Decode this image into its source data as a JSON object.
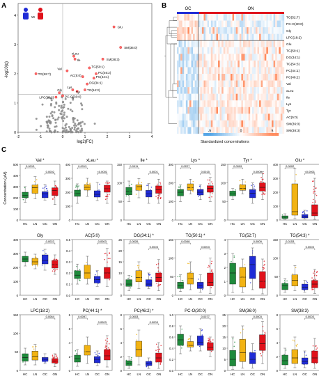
{
  "panels": {
    "A": "A",
    "B": "B",
    "C": "C"
  },
  "volcano": {
    "ylabel": "-log10(q)",
    "xlabel": "log2(FC)",
    "vs": "vs",
    "x_ticks": [
      "-2",
      "-1",
      "0",
      "1",
      "2",
      "3",
      "4"
    ],
    "y_ticks": [
      "0",
      "1",
      "2",
      "3",
      "4"
    ],
    "labels": [
      "Glu",
      "SM(36:0)",
      "xLeu",
      "Ile",
      "SM(38:3)",
      "TG(50:1)",
      "Val",
      "PC(46:2)",
      "AC(5:0)",
      "PC(44:1)",
      "TG(52:7)",
      "DG(34:1)",
      "Lys",
      "Tyr",
      "TG(54:3)",
      "Gly",
      "LPC(18:2)",
      "PC-O(30:0)"
    ]
  },
  "heatmap": {
    "groups": [
      "OC",
      "ON"
    ],
    "rows": [
      "TG(52:7)",
      "PC-O(30:0)",
      "Gly",
      "LPC(18:2)",
      "Glu",
      "TG(50:1)",
      "DG(34:1)",
      "TG(54:3)",
      "PC(44:1)",
      "PC(46:2)",
      "Val",
      "xLeu",
      "Ile",
      "Lys",
      "Tyr",
      "AC(5:0)",
      "SM(36:0)",
      "SM(38:3)"
    ],
    "colorbar_label": "Standardized concentrations",
    "colorbar_ticks": [
      "-5",
      "0",
      "5"
    ]
  },
  "boxes": {
    "ylabel": "Concentration (µM)",
    "groups": [
      "HC",
      "LN",
      "OC",
      "ON"
    ],
    "colors": {
      "HC": "#1f8a3c",
      "LN": "#f2b313",
      "OC": "#1f2bd6",
      "ON": "#e0121b"
    }
  },
  "chart_data": [
    {
      "type": "box",
      "title": "Val",
      "star": "*",
      "ylim": [
        0,
        500
      ],
      "yticks": [
        "0",
        "100",
        "200",
        "300",
        "400",
        "500"
      ],
      "medians": [
        220,
        290,
        235,
        265
      ],
      "q1": [
        200,
        240,
        200,
        220
      ],
      "q3": [
        250,
        315,
        255,
        290
      ],
      "wlo": [
        160,
        190,
        180,
        140
      ],
      "whi": [
        300,
        390,
        320,
        350
      ],
      "pvals": [
        {
          "g1": 0,
          "g2": 1,
          "p": "0.0013"
        },
        {
          "g1": 2,
          "g2": 3,
          "p": "0.0002"
        }
      ]
    },
    {
      "type": "box",
      "title": "xLeu",
      "star": "*",
      "ylim": [
        0,
        400
      ],
      "yticks": [
        "0",
        "100",
        "200",
        "300",
        "400"
      ],
      "medians": [
        190,
        235,
        185,
        225
      ],
      "q1": [
        170,
        215,
        165,
        200
      ],
      "q3": [
        215,
        255,
        210,
        250
      ],
      "wlo": [
        120,
        170,
        140,
        120
      ],
      "whi": [
        260,
        300,
        270,
        280
      ],
      "pvals": [
        {
          "g1": 0,
          "g2": 1,
          "p": "0.0013"
        },
        {
          "g1": 2,
          "g2": 3,
          "p": "<0.0001"
        }
      ]
    },
    {
      "type": "box",
      "title": "Ile",
      "star": "*",
      "ylim": [
        0,
        150
      ],
      "yticks": [
        "0",
        "50",
        "100",
        "150"
      ],
      "medians": [
        78,
        90,
        70,
        82
      ],
      "q1": [
        68,
        80,
        62,
        72
      ],
      "q3": [
        88,
        95,
        80,
        92
      ],
      "wlo": [
        50,
        60,
        45,
        45
      ],
      "whi": [
        105,
        112,
        98,
        110
      ],
      "pvals": [
        {
          "g1": 0,
          "g2": 1,
          "p": "0.0011"
        },
        {
          "g1": 2,
          "g2": 3,
          "p": "0.0001"
        }
      ]
    },
    {
      "type": "box",
      "title": "Lys",
      "star": "*",
      "ylim": [
        0,
        300
      ],
      "yticks": [
        "0",
        "100",
        "200",
        "300"
      ],
      "medians": [
        150,
        175,
        150,
        170
      ],
      "q1": [
        130,
        160,
        135,
        150
      ],
      "q3": [
        165,
        195,
        165,
        185
      ],
      "wlo": [
        100,
        140,
        110,
        100
      ],
      "whi": [
        190,
        220,
        190,
        230
      ],
      "pvals": [
        {
          "g1": 0,
          "g2": 1,
          "p": "0.0227"
        },
        {
          "g1": 2,
          "g2": 3,
          "p": "0.0015"
        }
      ]
    },
    {
      "type": "box",
      "title": "Tyr",
      "star": "*",
      "ylim": [
        0,
        150
      ],
      "yticks": [
        "0",
        "50",
        "100",
        "150"
      ],
      "medians": [
        70,
        85,
        72,
        88
      ],
      "q1": [
        65,
        80,
        60,
        78
      ],
      "q3": [
        78,
        95,
        82,
        100
      ],
      "wlo": [
        55,
        70,
        45,
        55
      ],
      "whi": [
        85,
        110,
        100,
        130
      ],
      "pvals": [
        {
          "g1": 0,
          "g2": 1,
          "p": "0.0099"
        },
        {
          "g1": 2,
          "g2": 3,
          "p": "0.0006"
        }
      ]
    },
    {
      "type": "box",
      "title": "Glu",
      "star": "*",
      "ylim": [
        0,
        400
      ],
      "yticks": [
        "0",
        "100",
        "200",
        "300",
        "400"
      ],
      "medians": [
        20,
        60,
        25,
        50
      ],
      "q1": [
        12,
        35,
        15,
        30
      ],
      "q3": [
        30,
        260,
        40,
        110
      ],
      "wlo": [
        5,
        10,
        8,
        5
      ],
      "whi": [
        45,
        370,
        70,
        300
      ],
      "pvals": [
        {
          "g1": 0,
          "g2": 1,
          "p": "0.0002"
        },
        {
          "g1": 2,
          "g2": 3,
          "p": "<0.0001"
        }
      ]
    },
    {
      "type": "box",
      "title": "Gly",
      "star": "",
      "ylim": [
        0,
        400
      ],
      "yticks": [
        "0",
        "100",
        "200",
        "300",
        "400"
      ],
      "medians": [
        260,
        240,
        250,
        220
      ],
      "q1": [
        240,
        220,
        225,
        195
      ],
      "q3": [
        280,
        265,
        290,
        250
      ],
      "wlo": [
        210,
        190,
        180,
        150
      ],
      "whi": [
        310,
        295,
        330,
        290
      ],
      "pvals": [
        {
          "g1": 2,
          "g2": 3,
          "p": "0.0022"
        }
      ]
    },
    {
      "type": "box",
      "title": "AC(5:0)",
      "star": "",
      "ylim": [
        0,
        0.5
      ],
      "yticks": [
        "0.0",
        "0.1",
        "0.2",
        "0.3",
        "0.4",
        "0.5"
      ],
      "medians": [
        0.18,
        0.2,
        0.14,
        0.2
      ],
      "q1": [
        0.15,
        0.15,
        0.11,
        0.15
      ],
      "q3": [
        0.22,
        0.27,
        0.17,
        0.25
      ],
      "wlo": [
        0.1,
        0.1,
        0.08,
        0.08
      ],
      "whi": [
        0.28,
        0.35,
        0.22,
        0.42
      ],
      "pvals": [
        {
          "g1": 2,
          "g2": 3,
          "p": "0.0003"
        }
      ]
    },
    {
      "type": "box",
      "title": "DG(34:1)",
      "star": "*",
      "ylim": [
        0,
        25
      ],
      "yticks": [
        "0",
        "5",
        "10",
        "15",
        "20",
        "25"
      ],
      "medians": [
        5,
        8,
        5,
        8
      ],
      "q1": [
        4,
        6,
        4,
        6
      ],
      "q3": [
        7,
        11,
        7,
        10
      ],
      "wlo": [
        2,
        3,
        3,
        2
      ],
      "whi": [
        9,
        15,
        10,
        16
      ],
      "pvals": [
        {
          "g1": 0,
          "g2": 1,
          "p": "0.0026"
        },
        {
          "g1": 2,
          "g2": 3,
          "p": "0.0003"
        }
      ]
    },
    {
      "type": "box",
      "title": "TG(50:1)",
      "star": "*",
      "ylim": [
        0,
        150
      ],
      "yticks": [
        "0",
        "50",
        "100",
        "150"
      ],
      "medians": [
        25,
        45,
        25,
        35
      ],
      "q1": [
        18,
        30,
        18,
        25
      ],
      "q3": [
        35,
        60,
        35,
        60
      ],
      "wlo": [
        10,
        15,
        8,
        5
      ],
      "whi": [
        55,
        90,
        55,
        100
      ],
      "pvals": [
        {
          "g1": 0,
          "g2": 1,
          "p": "0.0048"
        },
        {
          "g1": 2,
          "g2": 3,
          "p": "0.0003"
        }
      ]
    },
    {
      "type": "box",
      "title": "TG(52:7)",
      "star": "",
      "ylim": [
        0,
        4
      ],
      "yticks": [
        "0",
        "1",
        "2",
        "3",
        "4"
      ],
      "medians": [
        1.6,
        1.3,
        2.2,
        1.0
      ],
      "q1": [
        0.8,
        0.6,
        1.2,
        0.5
      ],
      "q3": [
        2.3,
        2.0,
        2.8,
        1.7
      ],
      "wlo": [
        0.2,
        0.2,
        0.4,
        0.1
      ],
      "whi": [
        3.0,
        2.6,
        3.4,
        2.6
      ],
      "pvals": [
        {
          "g1": 2,
          "g2": 3,
          "p": "0.0009"
        }
      ]
    },
    {
      "type": "box",
      "title": "TG(54:3)",
      "star": "*",
      "ylim": [
        0,
        150
      ],
      "yticks": [
        "0",
        "50",
        "100",
        "150"
      ],
      "medians": [
        25,
        40,
        22,
        30
      ],
      "q1": [
        15,
        25,
        15,
        20
      ],
      "q3": [
        32,
        55,
        30,
        40
      ],
      "wlo": [
        8,
        12,
        8,
        5
      ],
      "whi": [
        45,
        80,
        40,
        70
      ],
      "pvals": [
        {
          "g1": 0,
          "g2": 1,
          "p": "0.0153"
        },
        {
          "g1": 2,
          "g2": 3,
          "p": "0.0003"
        }
      ]
    },
    {
      "type": "box",
      "title": "LPC(18:2)",
      "star": "",
      "ylim": [
        0,
        150
      ],
      "yticks": [
        "0",
        "50",
        "100",
        "150"
      ],
      "medians": [
        35,
        38,
        30,
        25
      ],
      "q1": [
        25,
        28,
        25,
        20
      ],
      "q3": [
        45,
        52,
        35,
        32
      ],
      "wlo": [
        15,
        15,
        18,
        10
      ],
      "whi": [
        60,
        70,
        45,
        45
      ],
      "pvals": [
        {
          "g1": 2,
          "g2": 3,
          "p": "0.0064"
        }
      ]
    },
    {
      "type": "box",
      "title": "PC(44:1)",
      "star": "*",
      "ylim": [
        0,
        8
      ],
      "yticks": [
        "0",
        "2",
        "4",
        "6",
        "8"
      ],
      "medians": [
        1.7,
        2.7,
        1.6,
        2.1
      ],
      "q1": [
        1.2,
        2.2,
        1.1,
        1.5
      ],
      "q3": [
        2.2,
        3.6,
        2.0,
        3.0
      ],
      "wlo": [
        0.6,
        1.0,
        0.7,
        0.5
      ],
      "whi": [
        3.0,
        4.8,
        2.8,
        5.0
      ],
      "pvals": [
        {
          "g1": 0,
          "g2": 1,
          "p": "0.0097"
        },
        {
          "g1": 2,
          "g2": 3,
          "p": "0.0003"
        }
      ]
    },
    {
      "type": "box",
      "title": "PC(46:2)",
      "star": "*",
      "ylim": [
        0,
        8
      ],
      "yticks": [
        "0",
        "2",
        "4",
        "6",
        "8"
      ],
      "medians": [
        1.0,
        3.0,
        1.0,
        1.8
      ],
      "q1": [
        0.7,
        2.0,
        0.7,
        1.2
      ],
      "q3": [
        1.4,
        4.2,
        1.3,
        2.5
      ],
      "wlo": [
        0.3,
        0.8,
        0.3,
        0.3
      ],
      "whi": [
        2.0,
        5.8,
        1.8,
        4.0
      ],
      "pvals": [
        {
          "g1": 0,
          "g2": 1,
          "p": "0.0003"
        },
        {
          "g1": 2,
          "g2": 3,
          "p": "0.0003"
        }
      ]
    },
    {
      "type": "box",
      "title": "PC-O(30:0)",
      "star": "",
      "ylim": [
        0,
        1
      ],
      "yticks": [
        "0.0",
        "0.2",
        "0.4",
        "0.6",
        "0.8",
        "1.0"
      ],
      "medians": [
        0.55,
        0.45,
        0.5,
        0.42
      ],
      "q1": [
        0.45,
        0.42,
        0.45,
        0.36
      ],
      "q3": [
        0.65,
        0.52,
        0.62,
        0.5
      ],
      "wlo": [
        0.3,
        0.35,
        0.35,
        0.25
      ],
      "whi": [
        0.8,
        0.62,
        0.75,
        0.6
      ],
      "pvals": [
        {
          "g1": 2,
          "g2": 3,
          "p": "0.0077"
        }
      ]
    },
    {
      "type": "box",
      "title": "SM(36:0)",
      "star": "",
      "ylim": [
        0,
        25
      ],
      "yticks": [
        "0",
        "5",
        "10",
        "15",
        "20",
        "25"
      ],
      "medians": [
        5,
        8,
        5,
        12
      ],
      "q1": [
        2,
        4,
        3,
        9
      ],
      "q3": [
        9,
        14,
        8,
        16
      ],
      "wlo": [
        0.5,
        1,
        1,
        3
      ],
      "whi": [
        15,
        20,
        12,
        22
      ],
      "pvals": [
        {
          "g1": 2,
          "g2": 3,
          "p": "0.0003"
        }
      ]
    },
    {
      "type": "box",
      "title": "SM(38:3)",
      "star": "",
      "ylim": [
        0,
        8
      ],
      "yticks": [
        "0",
        "2",
        "4",
        "6",
        "8"
      ],
      "medians": [
        1.4,
        1.8,
        1.3,
        1.8
      ],
      "q1": [
        0.8,
        1.0,
        0.9,
        1.1
      ],
      "q3": [
        2.2,
        3.0,
        1.8,
        2.8
      ],
      "wlo": [
        0.3,
        0.4,
        0.4,
        0.3
      ],
      "whi": [
        3.2,
        4.8,
        2.8,
        4.6
      ],
      "pvals": [
        {
          "g1": 2,
          "g2": 3,
          "p": "0.0003"
        }
      ]
    }
  ]
}
